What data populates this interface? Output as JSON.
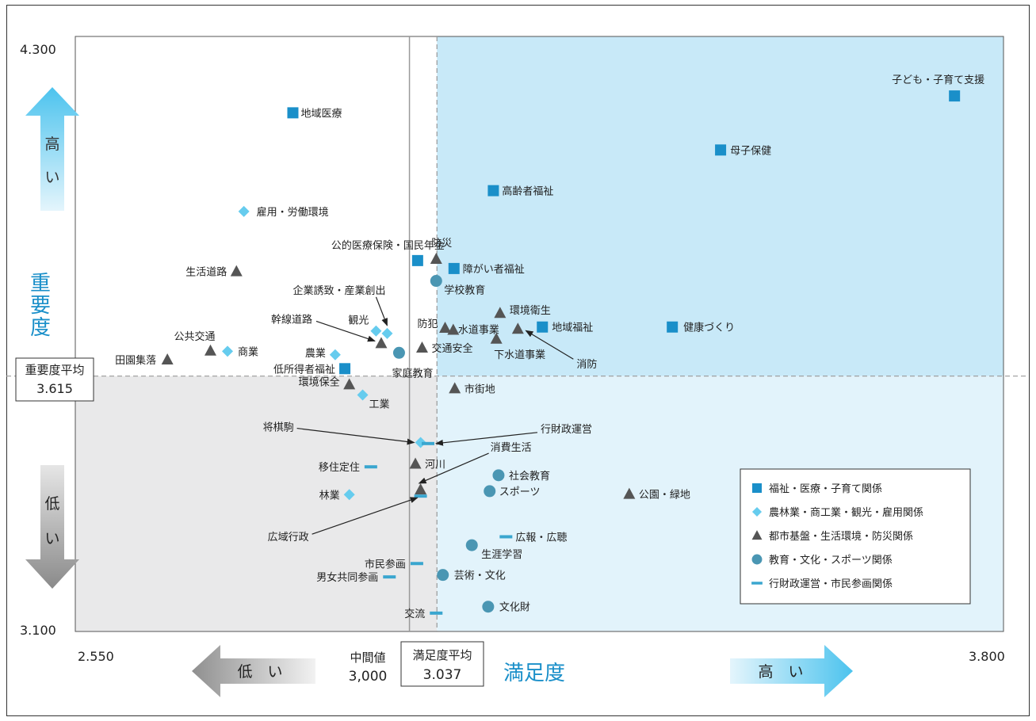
{
  "chart_data": {
    "type": "scatter",
    "xlim": [
      2.55,
      3.8
    ],
    "ylim": [
      3.1,
      4.3
    ],
    "x_tick_labels": [
      "2.550",
      "3.800"
    ],
    "y_tick_labels": [
      "4.300",
      "3.100"
    ],
    "xlabel": "満足度",
    "ylabel": "重要度",
    "y_avg": {
      "label": "重要度平均",
      "value": "3.615"
    },
    "x_avg": {
      "label": "満足度平均",
      "value": "3.037"
    },
    "x_mid": {
      "label": "中間値",
      "value": "3,000"
    },
    "arrows": {
      "high": "高い",
      "low": "低い",
      "x_low": "低　い",
      "x_high": "高　い"
    },
    "legend": [
      {
        "key": "welfare",
        "name": "福祉・医療・子育て関係",
        "marker": "square",
        "color": "#1a8fc9"
      },
      {
        "key": "industry",
        "name": "農林業・商工業・観光・雇用関係",
        "marker": "diamond",
        "color": "#66ccee"
      },
      {
        "key": "urban",
        "name": "都市基盤・生活環境・防災関係",
        "marker": "triangle",
        "color": "#555555"
      },
      {
        "key": "education",
        "name": "教育・文化・スポーツ関係",
        "marker": "circle",
        "color": "#4a96b3"
      },
      {
        "key": "admin",
        "name": "行財政運営・市民参画関係",
        "marker": "dash",
        "color": "#3aa6cf"
      }
    ],
    "points": [
      {
        "name": "子ども・子育て支援",
        "series": "welfare",
        "x": 3.734,
        "y": 4.18
      },
      {
        "name": "地域医療",
        "series": "welfare",
        "x": 2.843,
        "y": 4.146
      },
      {
        "name": "母子保健",
        "series": "welfare",
        "x": 3.419,
        "y": 4.071
      },
      {
        "name": "高齢者福祉",
        "series": "welfare",
        "x": 3.113,
        "y": 3.989
      },
      {
        "name": "公的医療保険・国民年金",
        "series": "welfare",
        "x": 3.011,
        "y": 3.848
      },
      {
        "name": "障がい者福祉",
        "series": "welfare",
        "x": 3.06,
        "y": 3.832
      },
      {
        "name": "地域福祉",
        "series": "welfare",
        "x": 3.179,
        "y": 3.714
      },
      {
        "name": "健康づくり",
        "series": "welfare",
        "x": 3.354,
        "y": 3.714
      },
      {
        "name": "低所得者福祉",
        "series": "welfare",
        "x": 2.913,
        "y": 3.63
      },
      {
        "name": "雇用・労働環境",
        "series": "industry",
        "x": 2.777,
        "y": 3.947
      },
      {
        "name": "観光",
        "series": "industry",
        "x": 2.955,
        "y": 3.706
      },
      {
        "name": "企業誘致・産業創出",
        "series": "industry",
        "x": 2.97,
        "y": 3.701
      },
      {
        "name": "商業",
        "series": "industry",
        "x": 2.755,
        "y": 3.665
      },
      {
        "name": "農業",
        "series": "industry",
        "x": 2.9,
        "y": 3.658
      },
      {
        "name": "工業",
        "series": "industry",
        "x": 2.937,
        "y": 3.577
      },
      {
        "name": "将棋駒",
        "series": "industry",
        "x": 3.015,
        "y": 3.481
      },
      {
        "name": "林業",
        "series": "industry",
        "x": 2.919,
        "y": 3.376
      },
      {
        "name": "防災",
        "series": "urban",
        "x": 3.036,
        "y": 3.851
      },
      {
        "name": "生活道路",
        "series": "urban",
        "x": 2.767,
        "y": 3.826
      },
      {
        "name": "環境衛生",
        "series": "urban",
        "x": 3.122,
        "y": 3.742
      },
      {
        "name": "防犯",
        "series": "urban",
        "x": 3.048,
        "y": 3.712
      },
      {
        "name": "水道事業",
        "series": "urban",
        "x": 3.059,
        "y": 3.708
      },
      {
        "name": "消防",
        "series": "urban",
        "x": 3.146,
        "y": 3.71
      },
      {
        "name": "下水道事業",
        "series": "urban",
        "x": 3.117,
        "y": 3.69
      },
      {
        "name": "幹線道路",
        "series": "urban",
        "x": 2.962,
        "y": 3.681
      },
      {
        "name": "交通安全",
        "series": "urban",
        "x": 3.017,
        "y": 3.672
      },
      {
        "name": "公共交通",
        "series": "urban",
        "x": 2.732,
        "y": 3.666
      },
      {
        "name": "田園集落",
        "series": "urban",
        "x": 2.674,
        "y": 3.648
      },
      {
        "name": "環境保全",
        "series": "urban",
        "x": 2.919,
        "y": 3.598
      },
      {
        "name": "市街地",
        "series": "urban",
        "x": 3.061,
        "y": 3.59
      },
      {
        "name": "河川",
        "series": "urban",
        "x": 3.008,
        "y": 3.438
      },
      {
        "name": "消費生活",
        "series": "urban",
        "x": 3.015,
        "y": 3.386
      },
      {
        "name": "公園・緑地",
        "series": "urban",
        "x": 3.296,
        "y": 3.377
      },
      {
        "name": "学校教育",
        "series": "education",
        "x": 3.036,
        "y": 3.807
      },
      {
        "name": "家庭教育",
        "series": "education",
        "x": 2.986,
        "y": 3.662
      },
      {
        "name": "社会教育",
        "series": "education",
        "x": 3.12,
        "y": 3.415
      },
      {
        "name": "スポーツ",
        "series": "education",
        "x": 3.108,
        "y": 3.383
      },
      {
        "name": "生涯学習",
        "series": "education",
        "x": 3.084,
        "y": 3.274
      },
      {
        "name": "芸術・文化",
        "series": "education",
        "x": 3.045,
        "y": 3.214
      },
      {
        "name": "文化財",
        "series": "education",
        "x": 3.106,
        "y": 3.15
      },
      {
        "name": "行財政運営",
        "series": "admin",
        "x": 3.025,
        "y": 3.479
      },
      {
        "name": "移住定住",
        "series": "admin",
        "x": 2.948,
        "y": 3.432
      },
      {
        "name": "広域行政",
        "series": "admin",
        "x": 3.015,
        "y": 3.373
      },
      {
        "name": "広報・広聴",
        "series": "admin",
        "x": 3.13,
        "y": 3.291
      },
      {
        "name": "市民参画",
        "series": "admin",
        "x": 3.01,
        "y": 3.237
      },
      {
        "name": "男女共同参画",
        "series": "admin",
        "x": 2.973,
        "y": 3.21
      },
      {
        "name": "交流",
        "series": "admin",
        "x": 3.036,
        "y": 3.137
      }
    ]
  }
}
